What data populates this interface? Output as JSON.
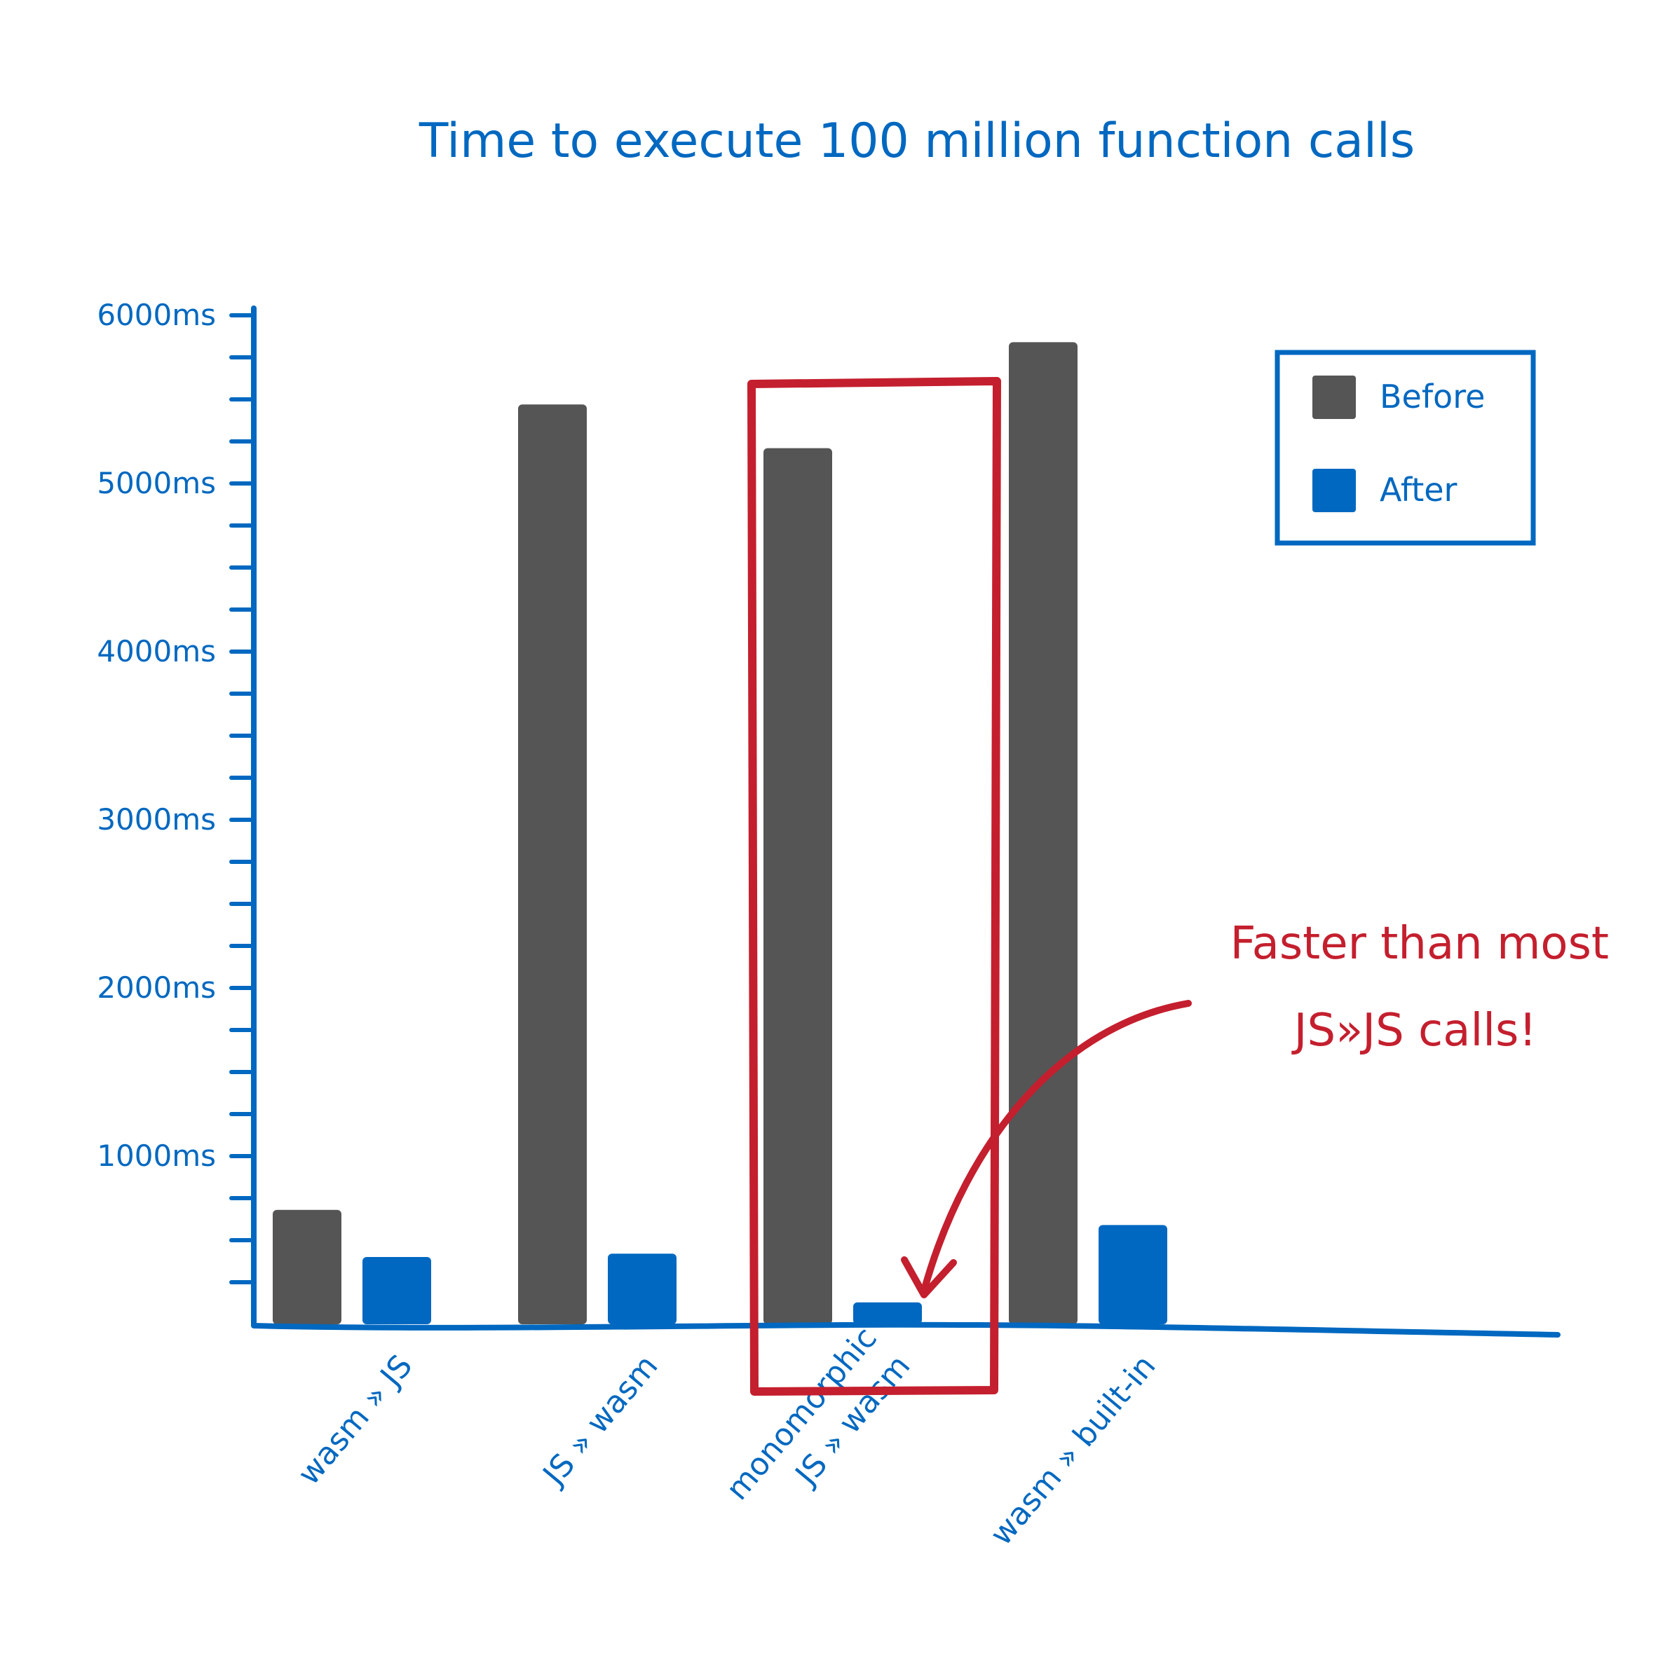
{
  "chart_data": {
    "type": "bar",
    "title": "Time to execute 100 million function calls",
    "xlabel": "",
    "ylabel": "",
    "ylim": [
      0,
      6000
    ],
    "y_ticks": [
      "6000ms",
      "5000ms",
      "4000ms",
      "3000ms",
      "2000ms",
      "1000ms"
    ],
    "y_tick_values": [
      6000,
      5000,
      4000,
      3000,
      2000,
      1000
    ],
    "y_minor_step": 250,
    "categories": [
      [
        "wasm » JS"
      ],
      [
        "JS » wasm"
      ],
      [
        "monomorphic",
        "JS » wasm"
      ],
      [
        "wasm » built-in"
      ]
    ],
    "series": [
      {
        "name": "Before",
        "color": "#555555",
        "values": [
          680,
          5470,
          5210,
          5840
        ]
      },
      {
        "name": "After",
        "color": "#0068c0",
        "values": [
          400,
          420,
          130,
          590
        ]
      }
    ],
    "legend": {
      "position": "top-right",
      "entries": [
        "Before",
        "After"
      ]
    },
    "grid": false,
    "highlight": {
      "category_index": 2,
      "color": "#c41f2e"
    },
    "annotation": {
      "lines": [
        "Faster than most",
        "JS»JS calls!"
      ],
      "color": "#c41f2e",
      "target_category_index": 2,
      "target_series": "After"
    },
    "colors": {
      "axis": "#0068c0",
      "text": "#0068c0",
      "highlight": "#c41f2e"
    }
  }
}
